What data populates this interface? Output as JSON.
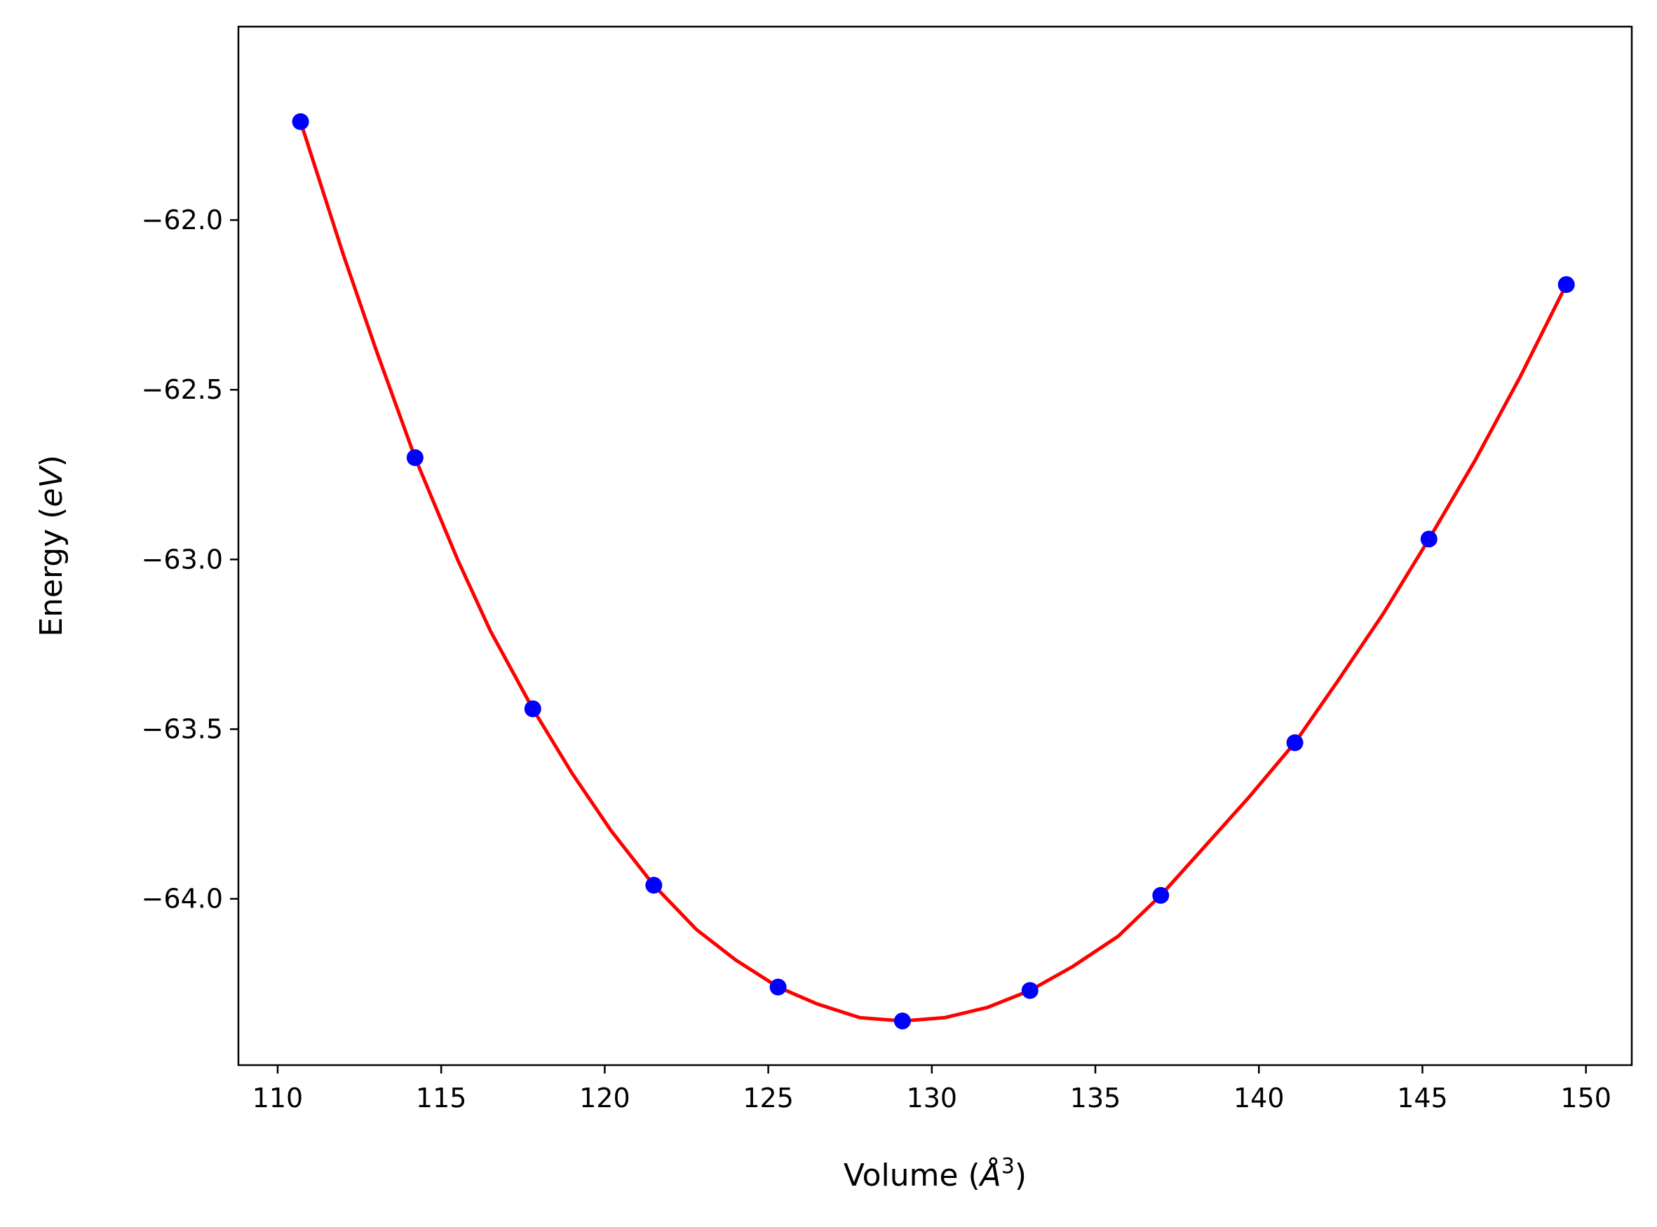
{
  "chart_data": {
    "type": "line",
    "title": "",
    "xlabel": "Volume (Å³)",
    "xlabel_parts": {
      "prefix": "Volume (",
      "symbol": "Å",
      "superscript": "3",
      "suffix": ")"
    },
    "ylabel": "Energy (eV)",
    "ylabel_parts": {
      "prefix": "Energy (",
      "unit": "eV",
      "suffix": ")"
    },
    "xlim": [
      108.8,
      151.4
    ],
    "ylim": [
      -64.49,
      -61.43
    ],
    "xticks": [
      110,
      115,
      120,
      125,
      130,
      135,
      140,
      145,
      150
    ],
    "xtick_labels": [
      "110",
      "115",
      "120",
      "125",
      "130",
      "135",
      "140",
      "145",
      "150"
    ],
    "yticks": [
      -62.0,
      -62.5,
      -63.0,
      -63.5,
      -64.0
    ],
    "ytick_labels": [
      "−62.0",
      "−62.5",
      "−63.0",
      "−63.5",
      "−64.0"
    ],
    "grid": false,
    "legend": "none",
    "series": [
      {
        "kind": "scatter",
        "color": "#0000ff",
        "marker": "circle",
        "x": [
          110.7,
          114.2,
          117.8,
          121.5,
          125.3,
          129.1,
          133.0,
          137.0,
          141.1,
          145.2,
          149.4
        ],
        "y": [
          -61.71,
          -62.7,
          -63.44,
          -63.96,
          -64.26,
          -64.36,
          -64.27,
          -63.99,
          -63.54,
          -62.94,
          -62.19
        ]
      },
      {
        "kind": "line",
        "color": "#ff0000",
        "x": [
          110.7,
          112.0,
          113.0,
          114.2,
          115.5,
          116.5,
          117.8,
          119.0,
          120.2,
          121.5,
          122.8,
          124.0,
          125.3,
          126.5,
          127.8,
          129.1,
          130.4,
          131.7,
          133.0,
          134.3,
          135.7,
          137.0,
          138.4,
          139.7,
          141.1,
          142.4,
          143.8,
          145.2,
          146.6,
          148.0,
          149.4
        ],
        "y": [
          -61.71,
          -62.1,
          -62.38,
          -62.7,
          -63.0,
          -63.21,
          -63.44,
          -63.63,
          -63.8,
          -63.96,
          -64.09,
          -64.18,
          -64.26,
          -64.31,
          -64.35,
          -64.36,
          -64.35,
          -64.32,
          -64.27,
          -64.2,
          -64.11,
          -63.99,
          -63.84,
          -63.7,
          -63.54,
          -63.36,
          -63.16,
          -62.94,
          -62.71,
          -62.46,
          -62.19
        ]
      }
    ]
  }
}
